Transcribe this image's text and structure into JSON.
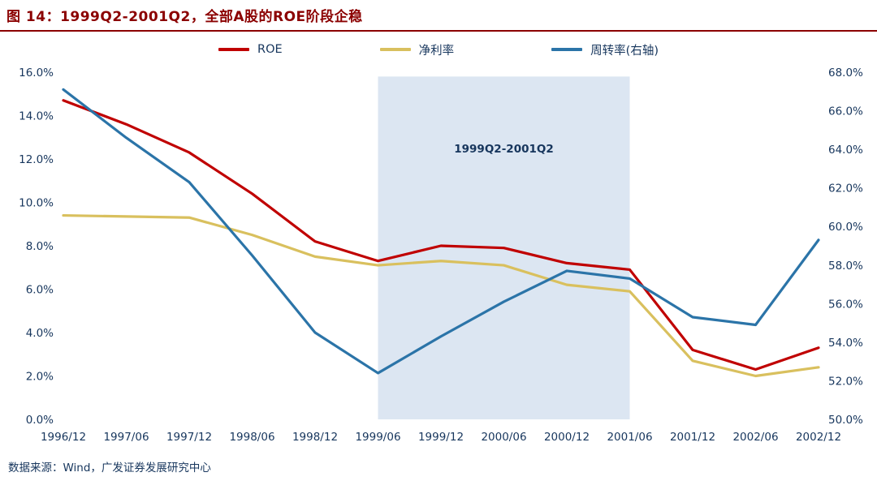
{
  "title": "图 14：1999Q2-2001Q2，全部A股的ROE阶段企稳",
  "footer": "数据来源：Wind，广发证券发展研究中心",
  "colors": {
    "title": "#8b0000",
    "rule": "#8b0000",
    "axis_text": "#17365d",
    "band": "#dce6f2",
    "roe": "#c00000",
    "net_margin": "#d9c05e",
    "turnover": "#2b74a8"
  },
  "chart_data": {
    "type": "line",
    "title": "1999Q2-2001Q2，全部A股的ROE阶段企稳",
    "x": [
      "1996/12",
      "1997/06",
      "1997/12",
      "1998/06",
      "1998/12",
      "1999/06",
      "1999/12",
      "2000/06",
      "2000/12",
      "2001/06",
      "2001/12",
      "2002/06",
      "2002/12"
    ],
    "series": [
      {
        "name": "ROE",
        "axis": "left",
        "color": "#c00000",
        "values": [
          14.7,
          13.6,
          12.3,
          10.4,
          8.2,
          7.3,
          8.0,
          7.9,
          7.2,
          6.9,
          3.2,
          2.3,
          3.3
        ]
      },
      {
        "name": "净利率",
        "axis": "left",
        "color": "#d9c05e",
        "values": [
          9.4,
          9.35,
          9.3,
          8.5,
          7.5,
          7.1,
          7.3,
          7.1,
          6.2,
          5.9,
          2.7,
          2.0,
          2.4
        ]
      },
      {
        "name": "周转率(右轴)",
        "axis": "right",
        "color": "#2b74a8",
        "values": [
          67.1,
          64.6,
          62.3,
          58.5,
          54.5,
          52.4,
          54.3,
          56.1,
          57.7,
          57.3,
          55.3,
          54.9,
          59.3
        ]
      }
    ],
    "left_axis": {
      "min": 0,
      "max": 16,
      "step": 2,
      "unit": "%"
    },
    "right_axis": {
      "min": 50,
      "max": 68,
      "step": 2,
      "unit": "%"
    },
    "band": {
      "from": "1999/06",
      "to": "2001/06",
      "label": "1999Q2-2001Q2",
      "top_value": 15.8,
      "label_value": 12.3
    },
    "legend_position": "top",
    "grid": false
  }
}
